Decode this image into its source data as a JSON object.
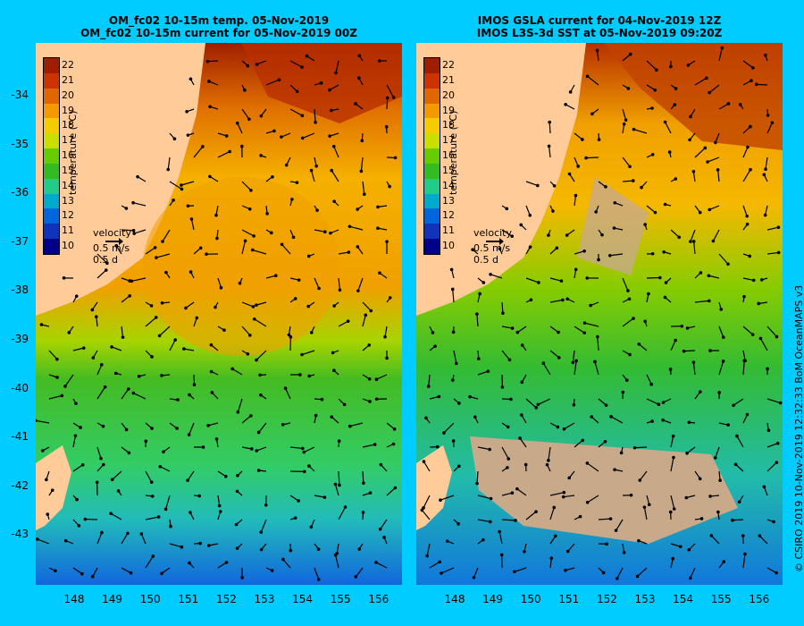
{
  "left_panel": {
    "title_line1": "OM_fc02 10-15m temp. 05-Nov-2019",
    "title_line2": "OM_fc02 10-15m current for 05-Nov-2019 00Z"
  },
  "right_panel": {
    "title_line1": "IMOS GSLA current for 04-Nov-2019 12Z",
    "title_line2": "IMOS L3S-3d SST at 05-Nov-2019 09:20Z"
  },
  "colorbar": {
    "title": "temperature (°C)",
    "ticks": [
      "22",
      "21",
      "20",
      "19",
      "18",
      "17",
      "16",
      "15",
      "14",
      "13",
      "12",
      "11",
      "10"
    ],
    "colors": [
      "#a01e00",
      "#cc3300",
      "#e06600",
      "#f49900",
      "#f5cc00",
      "#ccdd00",
      "#66cc00",
      "#33bb22",
      "#22cc88",
      "#00aacc",
      "#0066dd",
      "#1133bb",
      "#000088"
    ]
  },
  "velocity": {
    "label": "velocity",
    "speed": "0.5 m/s",
    "time": "0.5 d"
  },
  "latitudes": [
    "-34",
    "-35",
    "-36",
    "-37",
    "-38",
    "-39",
    "-40",
    "-41",
    "-42",
    "-43"
  ],
  "longitudes": [
    "148",
    "149",
    "150",
    "151",
    "152",
    "153",
    "154",
    "155",
    "156"
  ],
  "credit": "© CSIRO 2019   10-Nov-2019 12:32:33 BoM OceanMAPS v3",
  "colors": {
    "background": "#00ccff",
    "land": "#ffcc99",
    "no_data": "#c8aa8a"
  }
}
